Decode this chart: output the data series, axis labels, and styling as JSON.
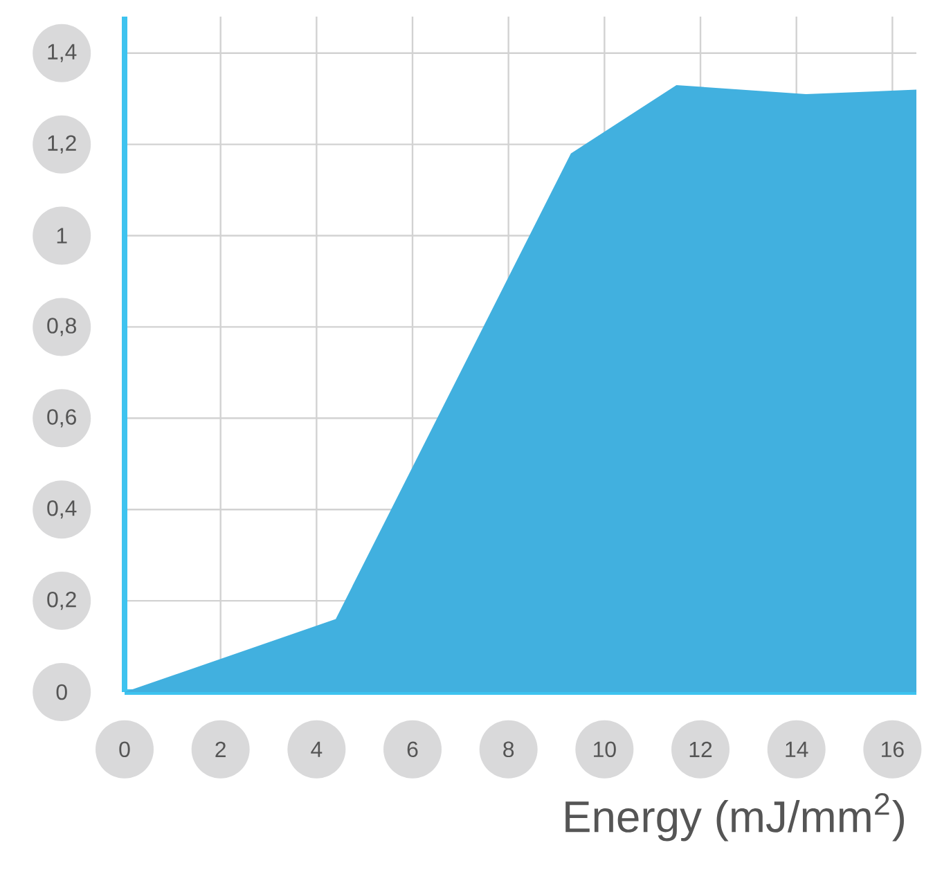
{
  "chart_data": {
    "type": "area",
    "xlabel": "Energy (mJ/mm$^{2}$)",
    "x": [
      0,
      4.4,
      9.3,
      11.5,
      14.2,
      16.5
    ],
    "values": [
      0,
      0.16,
      1.18,
      1.33,
      1.31,
      1.32
    ],
    "color": "#41b0df",
    "xlim": [
      0,
      16.5
    ],
    "ylim": [
      0,
      1.48
    ],
    "xticks": [
      0,
      2,
      4,
      6,
      8,
      10,
      12,
      14,
      16
    ],
    "yticks": [
      0,
      {
        "value": 0.2,
        "label": "0,2"
      },
      {
        "value": 0.4,
        "label": "0,4"
      },
      {
        "value": 0.6,
        "label": "0,6"
      },
      {
        "value": 0.8,
        "label": "0,8"
      },
      1,
      {
        "value": 1.2,
        "label": "1,2"
      },
      {
        "value": 1.4,
        "label": "1,4"
      }
    ],
    "grid": true
  }
}
